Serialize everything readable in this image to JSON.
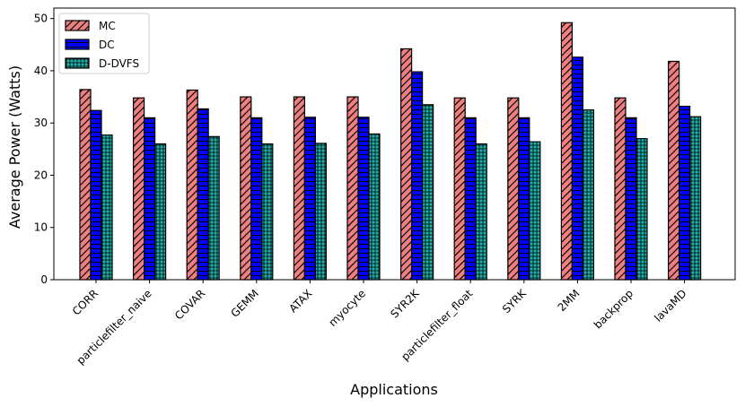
{
  "chart_data": {
    "type": "bar",
    "title": "",
    "xlabel": "Applications",
    "ylabel": "Average Power (Watts)",
    "ylim": [
      0,
      52
    ],
    "yticks": [
      0,
      10,
      20,
      30,
      40,
      50
    ],
    "legend_position": "top-left",
    "grid": false,
    "categories": [
      "CORR",
      "particlefilter_naive",
      "COVAR",
      "GEMM",
      "ATAX",
      "myocyte",
      "SYR2K",
      "particlefilter_float",
      "SYRK",
      "2MM",
      "backprop",
      "lavaMD"
    ],
    "series": [
      {
        "name": "MC",
        "color": "#f08080",
        "hatch": "diagonal",
        "values": [
          36.4,
          34.8,
          36.3,
          35.0,
          35.0,
          35.0,
          44.2,
          34.8,
          34.8,
          49.2,
          34.8,
          41.8
        ]
      },
      {
        "name": "DC",
        "color": "#0000ff",
        "hatch": "horizontal",
        "values": [
          32.4,
          31.0,
          32.7,
          31.0,
          31.1,
          31.1,
          39.8,
          31.0,
          31.0,
          42.6,
          31.0,
          33.2
        ]
      },
      {
        "name": "D-DVFS",
        "color": "#20b2aa",
        "hatch": "grid",
        "values": [
          27.7,
          26.0,
          27.4,
          26.0,
          26.1,
          27.9,
          33.5,
          26.0,
          26.4,
          32.5,
          27.0,
          31.2
        ]
      }
    ]
  }
}
